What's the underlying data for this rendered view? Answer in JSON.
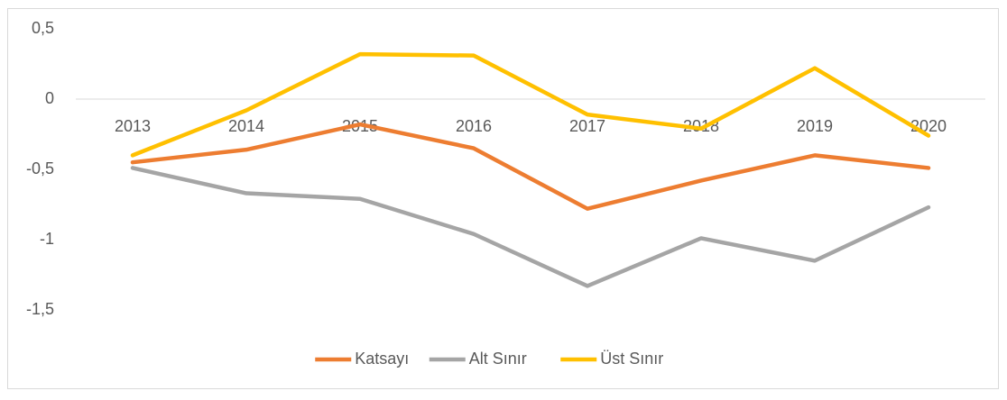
{
  "chart_data": {
    "type": "line",
    "categories": [
      "2013",
      "2014",
      "2015",
      "2016",
      "2017",
      "2018",
      "2019",
      "2020"
    ],
    "series": [
      {
        "name": "Katsayı",
        "color": "#ed7d31",
        "values": [
          -0.45,
          -0.36,
          -0.18,
          -0.35,
          -0.78,
          -0.58,
          -0.4,
          -0.49
        ]
      },
      {
        "name": "Alt Sınır",
        "color": "#a5a5a5",
        "values": [
          -0.49,
          -0.67,
          -0.71,
          -0.96,
          -1.33,
          -0.99,
          -1.15,
          -0.77
        ]
      },
      {
        "name": "Üst Sınır",
        "color": "#ffc000",
        "values": [
          -0.4,
          -0.08,
          0.32,
          0.31,
          -0.11,
          -0.21,
          0.22,
          -0.26
        ]
      }
    ],
    "ylim": [
      -1.5,
      0.5
    ],
    "yticks": [
      {
        "value": 0.5,
        "label": "0,5"
      },
      0,
      {
        "value": -0.5,
        "label": "-0,5"
      },
      {
        "value": -1,
        "label": "-1"
      },
      {
        "value": -1.5,
        "label": "-1,5"
      }
    ],
    "grid": false,
    "legend": "bottom"
  }
}
